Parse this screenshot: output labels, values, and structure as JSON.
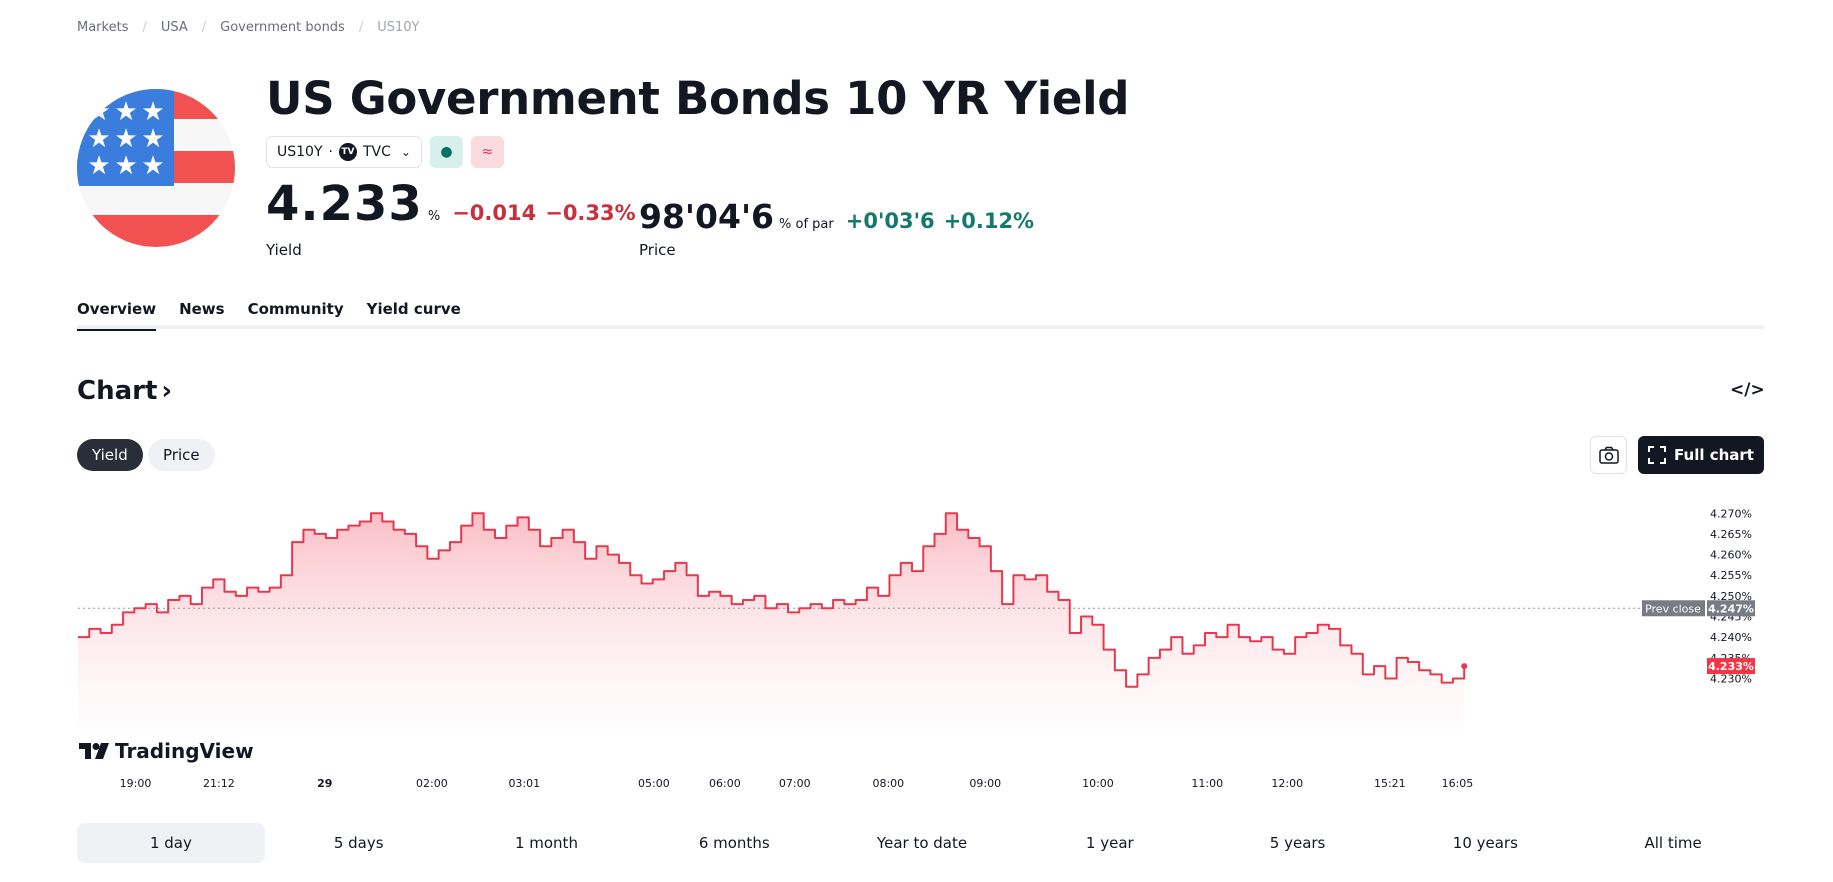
{
  "breadcrumb": [
    "Markets",
    "USA",
    "Government bonds",
    "US10Y"
  ],
  "title": "US Government Bonds 10 YR Yield",
  "symbol_chip": {
    "symbol": "US10Y",
    "source": "TVC"
  },
  "yield_quote": {
    "value": "4.233",
    "unit": "%",
    "change": "−0.014",
    "change_pct": "−0.33%",
    "label": "Yield"
  },
  "price_quote": {
    "value": "98'04'6",
    "unit": "% of par",
    "change": "+0'03'6",
    "change_pct": "+0.12%",
    "label": "Price"
  },
  "tabs": [
    "Overview",
    "News",
    "Community",
    "Yield curve"
  ],
  "active_tab": "Overview",
  "chart_section": {
    "heading": "Chart",
    "embed_icon": "code-icon",
    "toggles": [
      "Yield",
      "Price"
    ],
    "active_toggle": "Yield",
    "full_chart_label": "Full chart",
    "logo_text": "TradingView"
  },
  "ranges": [
    "1 day",
    "5 days",
    "1 month",
    "6 months",
    "Year to date",
    "1 year",
    "5 years",
    "10 years",
    "All time"
  ],
  "active_range": "1 day",
  "colors": {
    "line": "#e8384f",
    "negative": "#c9303e",
    "positive": "#137a6b",
    "badge": "#f23645",
    "prev_close_badge": "#787b86"
  },
  "chart_data": {
    "type": "area",
    "title": "",
    "ylim": [
      4.226,
      4.272
    ],
    "y_ticks": [
      "4.270%",
      "4.265%",
      "4.260%",
      "4.255%",
      "4.250%",
      "4.245%",
      "4.240%",
      "4.235%",
      "4.230%"
    ],
    "y_tick_values": [
      4.27,
      4.265,
      4.26,
      4.255,
      4.25,
      4.245,
      4.24,
      4.235,
      4.23
    ],
    "x_ticks": [
      "19:00",
      "21:12",
      "29",
      "02:00",
      "03:01",
      "05:00",
      "06:00",
      "07:00",
      "08:00",
      "09:00",
      "10:00",
      "11:00",
      "12:00",
      "15:21",
      "16:05"
    ],
    "x_tick_index": [
      5.1,
      12.5,
      21.9,
      31.4,
      39.6,
      51.1,
      57.4,
      63.6,
      71.9,
      80.5,
      90.5,
      100.2,
      107.3,
      116.4,
      122.4
    ],
    "x_count": 124,
    "prev_close": {
      "label": "Prev close",
      "value": 4.247,
      "text": "4.247%"
    },
    "last": {
      "value": 4.233,
      "text": "4.233%"
    },
    "series": [
      {
        "values": [
          4.24,
          4.242,
          4.241,
          4.243,
          4.246,
          4.247,
          4.248,
          4.246,
          4.249,
          4.25,
          4.248,
          4.252,
          4.254,
          4.251,
          4.25,
          4.252,
          4.251,
          4.252,
          4.255,
          4.263,
          4.266,
          4.265,
          4.264,
          4.266,
          4.267,
          4.268,
          4.27,
          4.268,
          4.266,
          4.265,
          4.262,
          4.259,
          4.261,
          4.263,
          4.267,
          4.27,
          4.266,
          4.264,
          4.267,
          4.269,
          4.266,
          4.262,
          4.264,
          4.266,
          4.263,
          4.259,
          4.262,
          4.26,
          4.258,
          4.255,
          4.253,
          4.254,
          4.256,
          4.258,
          4.255,
          4.25,
          4.251,
          4.25,
          4.248,
          4.249,
          4.25,
          4.247,
          4.248,
          4.246,
          4.247,
          4.248,
          4.247,
          4.249,
          4.248,
          4.249,
          4.252,
          4.25,
          4.255,
          4.258,
          4.256,
          4.262,
          4.265,
          4.27,
          4.266,
          4.264,
          4.262,
          4.256,
          4.248,
          4.255,
          4.254,
          4.255,
          4.251,
          4.249,
          4.241,
          4.245,
          4.243,
          4.237,
          4.232,
          4.228,
          4.231,
          4.235,
          4.237,
          4.24,
          4.236,
          4.238,
          4.241,
          4.24,
          4.243,
          4.24,
          4.239,
          4.24,
          4.237,
          4.236,
          4.24,
          4.241,
          4.243,
          4.242,
          4.238,
          4.236,
          4.231,
          4.233,
          4.23,
          4.235,
          4.234,
          4.232,
          4.231,
          4.229,
          4.23,
          4.233
        ]
      }
    ]
  }
}
